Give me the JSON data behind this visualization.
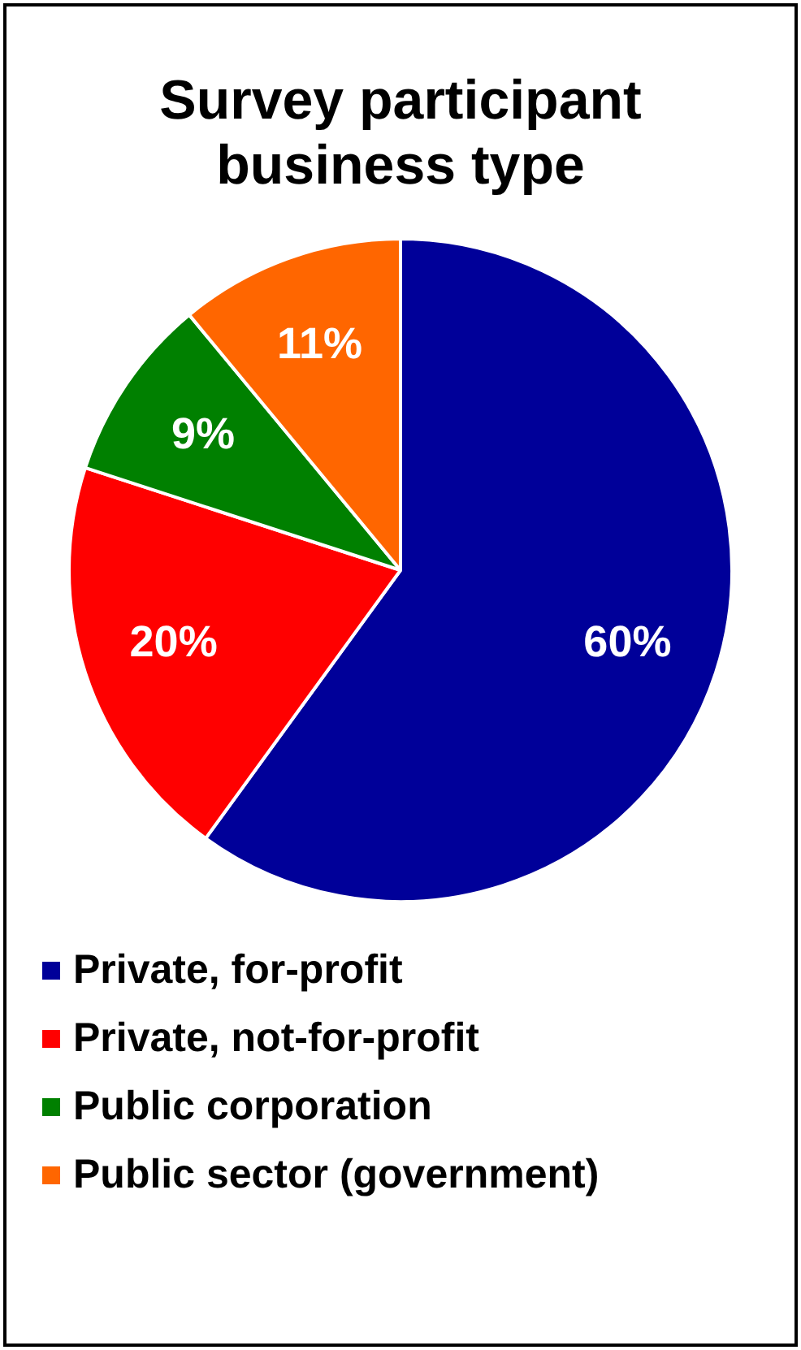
{
  "chart_data": {
    "type": "pie",
    "title": "Survey participant business type",
    "categories": [
      "Private, for-profit",
      "Private, not-for-profit",
      "Public corporation",
      "Public sector (government)"
    ],
    "values": [
      60,
      20,
      9,
      11
    ],
    "colors": [
      "#000099",
      "#ff0000",
      "#008000",
      "#ff6600"
    ],
    "value_labels": [
      "60%",
      "20%",
      "9%",
      "11%"
    ],
    "legend": "bottom"
  }
}
